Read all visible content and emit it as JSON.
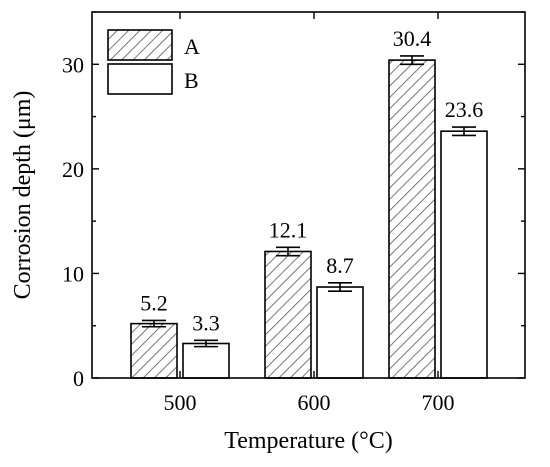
{
  "chart_data": {
    "type": "bar",
    "title": "",
    "xlabel": "Temperature (°C)",
    "ylabel": "Corrosion depth (μm)",
    "categories": [
      "500",
      "600",
      "700"
    ],
    "series": [
      {
        "name": "A",
        "values": [
          5.2,
          12.1,
          30.4
        ],
        "errors": [
          0.3,
          0.4,
          0.4
        ],
        "fill": "hatched"
      },
      {
        "name": "B",
        "values": [
          3.3,
          8.7,
          23.6
        ],
        "errors": [
          0.3,
          0.4,
          0.4
        ],
        "fill": "white"
      }
    ],
    "data_labels": [
      [
        "5.2",
        "12.1",
        "30.4"
      ],
      [
        "3.3",
        "8.7",
        "23.6"
      ]
    ],
    "ylim": [
      0,
      35
    ],
    "yticks": [
      0,
      10,
      20,
      30
    ],
    "ytick_labels": [
      "0",
      "10",
      "20",
      "30"
    ],
    "grid": false,
    "legend_position": "top-left",
    "colors": {
      "stroke": "#000000",
      "hatch": "#555555",
      "background": "#ffffff"
    }
  }
}
